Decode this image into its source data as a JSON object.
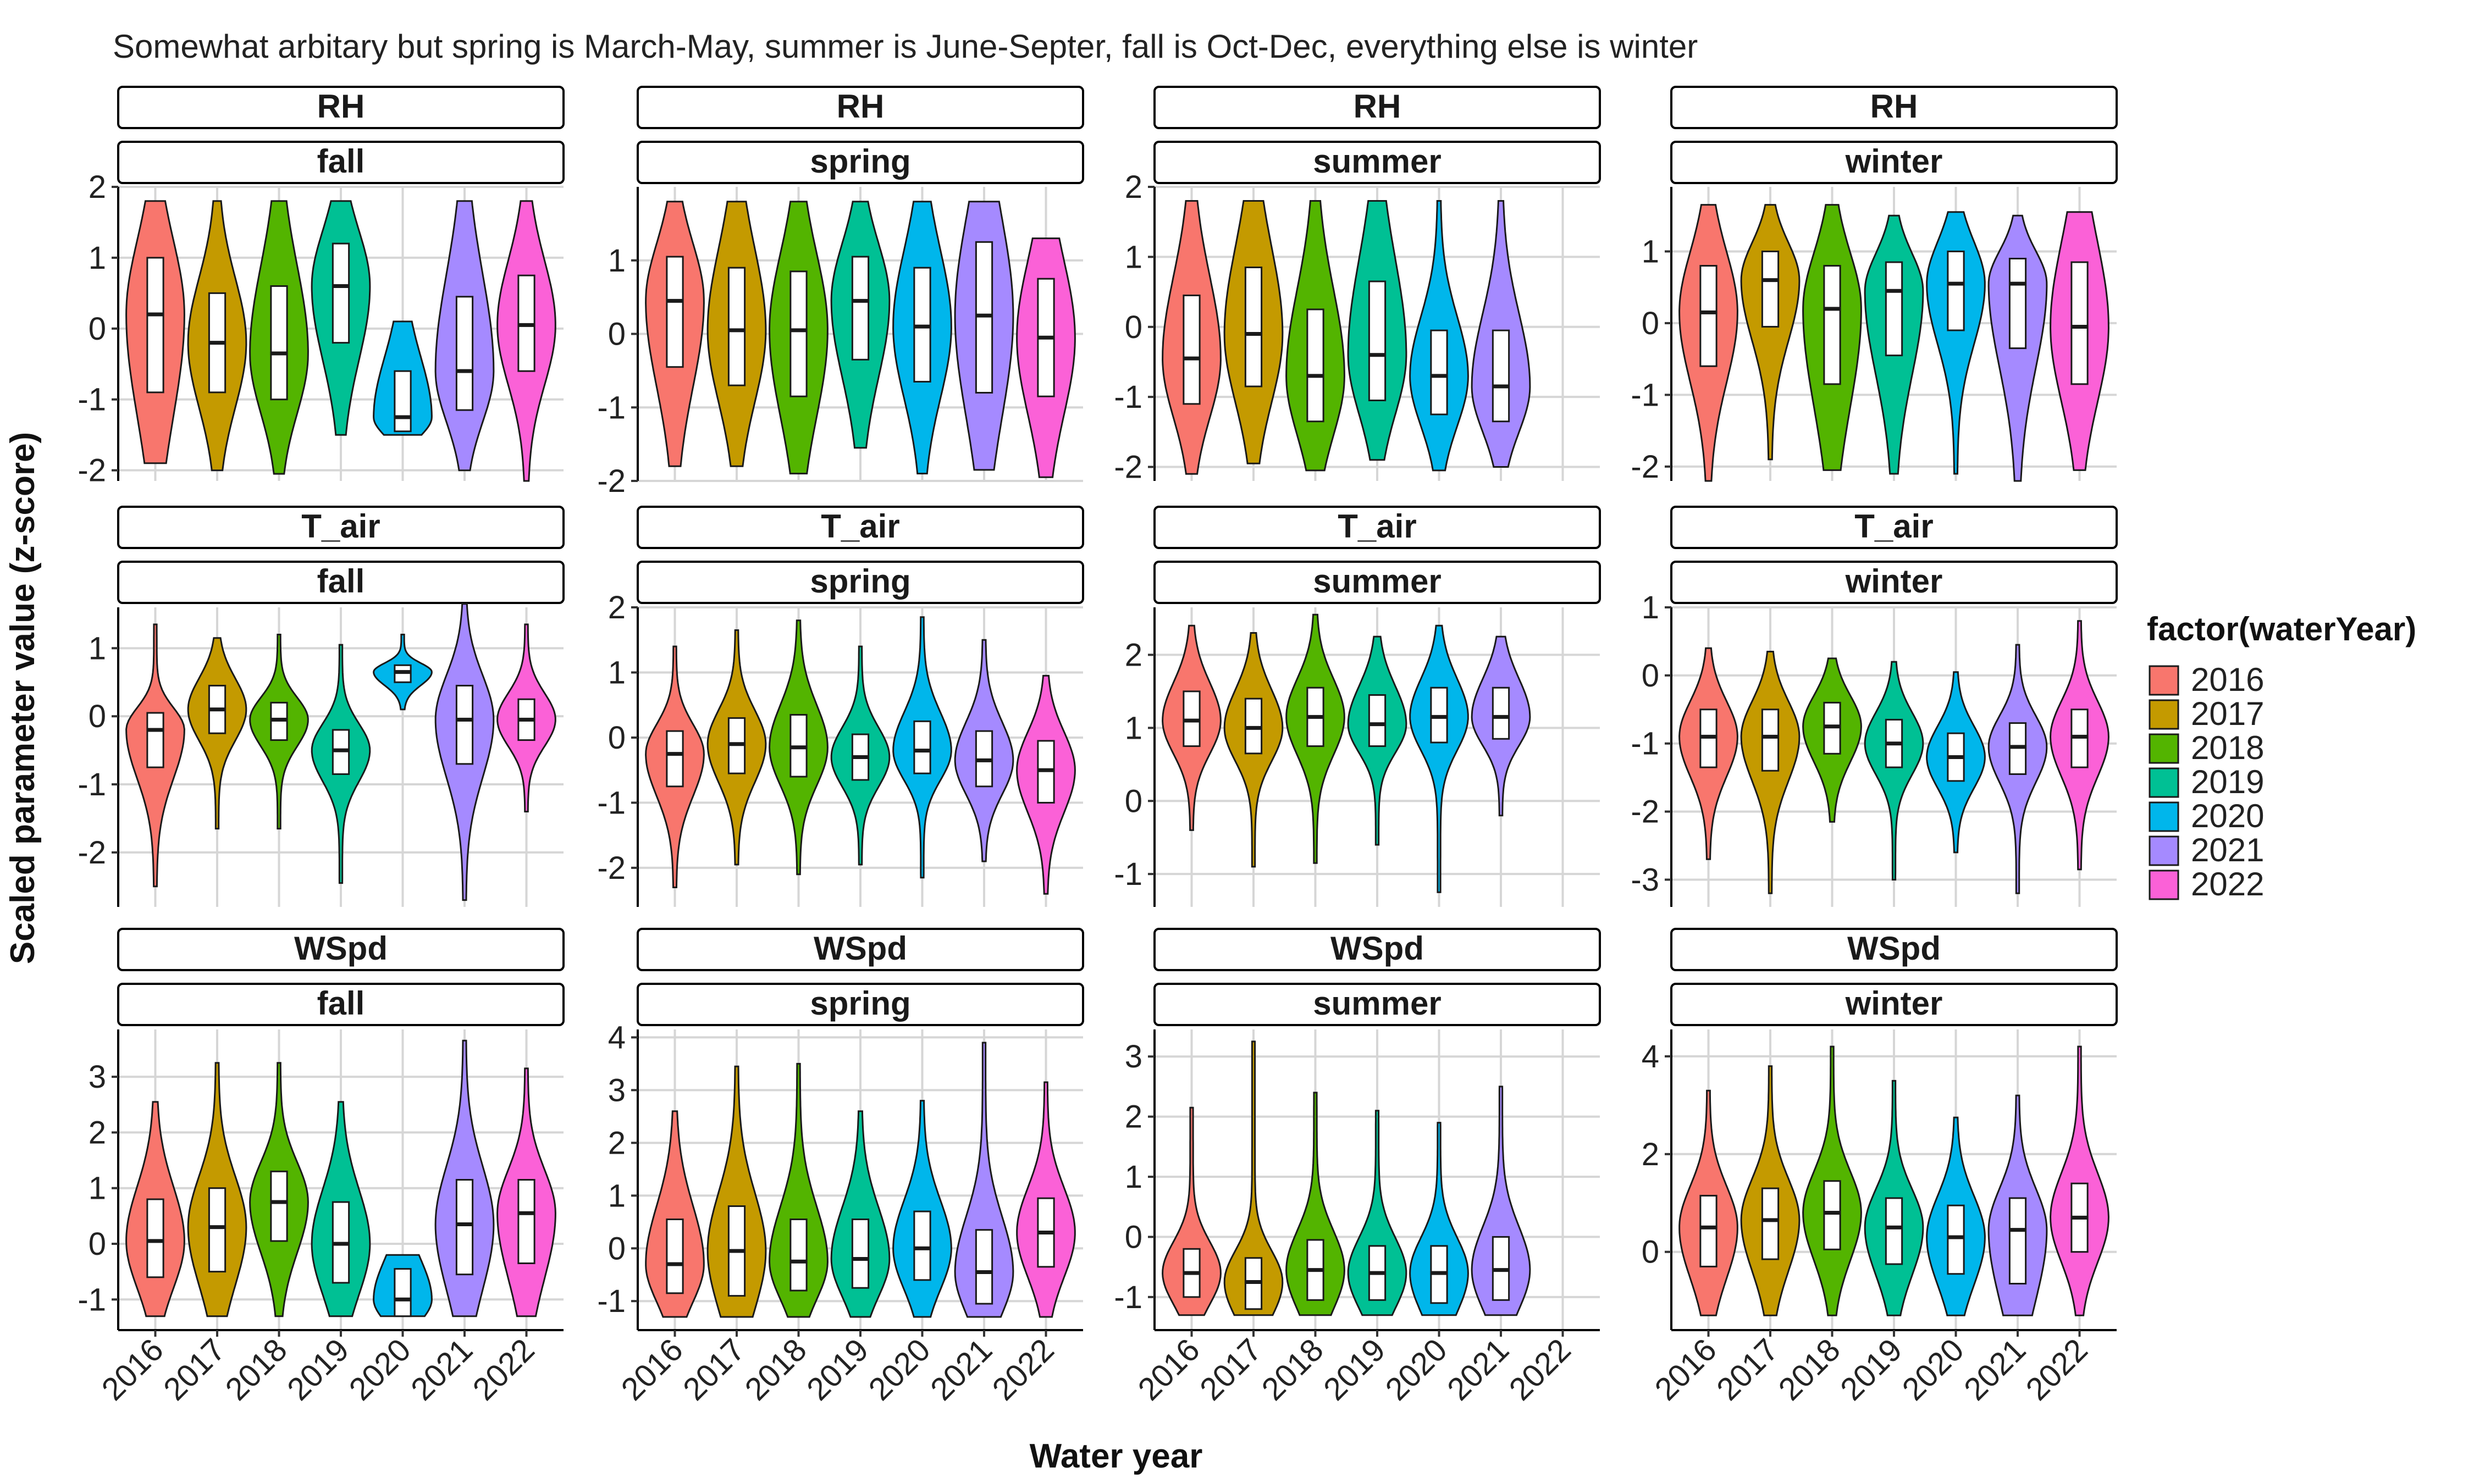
{
  "title": "Somewhat arbitary but spring is March-May, summer is June-Septer, fall is Oct-Dec, everything else is winter",
  "xlabel": "Water year",
  "ylabel": "Scaled parameter value (z-score)",
  "legend": {
    "title": "factor(waterYear)",
    "position": "right",
    "entries": [
      {
        "label": "2016",
        "color": "#F8766D"
      },
      {
        "label": "2017",
        "color": "#C49A00"
      },
      {
        "label": "2018",
        "color": "#53B400"
      },
      {
        "label": "2019",
        "color": "#00C094"
      },
      {
        "label": "2020",
        "color": "#00B6EB"
      },
      {
        "label": "2021",
        "color": "#A58AFF"
      },
      {
        "label": "2022",
        "color": "#FB61D7"
      }
    ]
  },
  "chart_data": {
    "type": "violin",
    "grid": true,
    "categories": [
      "2016",
      "2017",
      "2018",
      "2019",
      "2020",
      "2021",
      "2022"
    ],
    "facet_rows": [
      "RH",
      "T_air",
      "WSpd"
    ],
    "facet_cols": [
      "fall",
      "spring",
      "summer",
      "winter"
    ],
    "panels": [
      {
        "param": "RH",
        "season": "fall",
        "ylim": [
          -2.15,
          2.0
        ],
        "yticks": [
          -2,
          -1,
          0,
          1,
          2
        ],
        "groups": [
          {
            "year": "2016",
            "min": -1.9,
            "max": 1.8,
            "q1": -0.9,
            "median": 0.2,
            "q3": 1.0
          },
          {
            "year": "2017",
            "min": -2.0,
            "max": 1.8,
            "q1": -0.9,
            "median": -0.2,
            "q3": 0.5
          },
          {
            "year": "2018",
            "min": -2.05,
            "max": 1.8,
            "q1": -1.0,
            "median": -0.35,
            "q3": 0.6
          },
          {
            "year": "2019",
            "min": -1.5,
            "max": 1.8,
            "q1": -0.2,
            "median": 0.6,
            "q3": 1.2
          },
          {
            "year": "2020",
            "min": -1.5,
            "max": 0.1,
            "q1": -1.45,
            "median": -1.25,
            "q3": -0.6
          },
          {
            "year": "2021",
            "min": -2.0,
            "max": 1.8,
            "q1": -1.15,
            "median": -0.6,
            "q3": 0.45
          },
          {
            "year": "2022",
            "min": -2.15,
            "max": 1.8,
            "q1": -0.6,
            "median": 0.05,
            "q3": 0.75
          }
        ]
      },
      {
        "param": "RH",
        "season": "spring",
        "ylim": [
          -2.0,
          2.0
        ],
        "yticks": [
          -2,
          -1,
          0,
          1
        ],
        "groups": [
          {
            "year": "2016",
            "min": -1.8,
            "max": 1.8,
            "q1": -0.45,
            "median": 0.45,
            "q3": 1.05
          },
          {
            "year": "2017",
            "min": -1.8,
            "max": 1.8,
            "q1": -0.7,
            "median": 0.05,
            "q3": 0.9
          },
          {
            "year": "2018",
            "min": -1.9,
            "max": 1.8,
            "q1": -0.85,
            "median": 0.05,
            "q3": 0.85
          },
          {
            "year": "2019",
            "min": -1.55,
            "max": 1.8,
            "q1": -0.35,
            "median": 0.45,
            "q3": 1.05
          },
          {
            "year": "2020",
            "min": -1.9,
            "max": 1.8,
            "q1": -0.65,
            "median": 0.1,
            "q3": 0.9
          },
          {
            "year": "2021",
            "min": -1.85,
            "max": 1.8,
            "q1": -0.8,
            "median": 0.25,
            "q3": 1.25
          },
          {
            "year": "2022",
            "min": -1.95,
            "max": 1.3,
            "q1": -0.85,
            "median": -0.05,
            "q3": 0.75
          }
        ]
      },
      {
        "param": "RH",
        "season": "summer",
        "ylim": [
          -2.2,
          2.0
        ],
        "yticks": [
          -2,
          -1,
          0,
          1,
          2
        ],
        "groups": [
          {
            "year": "2016",
            "min": -2.1,
            "max": 1.8,
            "q1": -1.1,
            "median": -0.45,
            "q3": 0.45
          },
          {
            "year": "2017",
            "min": -1.95,
            "max": 1.8,
            "q1": -0.85,
            "median": -0.1,
            "q3": 0.85
          },
          {
            "year": "2018",
            "min": -2.05,
            "max": 1.8,
            "q1": -1.35,
            "median": -0.7,
            "q3": 0.25
          },
          {
            "year": "2019",
            "min": -1.9,
            "max": 1.8,
            "q1": -1.05,
            "median": -0.4,
            "q3": 0.65
          },
          {
            "year": "2020",
            "min": -2.05,
            "max": 1.8,
            "q1": -1.25,
            "median": -0.7,
            "q3": -0.05
          },
          {
            "year": "2021",
            "min": -2.0,
            "max": 1.8,
            "q1": -1.35,
            "median": -0.85,
            "q3": -0.05
          }
        ]
      },
      {
        "param": "RH",
        "season": "winter",
        "ylim": [
          -2.2,
          1.9
        ],
        "yticks": [
          -2,
          -1,
          0,
          1
        ],
        "groups": [
          {
            "year": "2016",
            "min": -2.2,
            "max": 1.65,
            "q1": -0.6,
            "median": 0.15,
            "q3": 0.8
          },
          {
            "year": "2017",
            "min": -1.9,
            "max": 1.65,
            "q1": -0.05,
            "median": 0.6,
            "q3": 1.0
          },
          {
            "year": "2018",
            "min": -2.05,
            "max": 1.65,
            "q1": -0.85,
            "median": 0.2,
            "q3": 0.8
          },
          {
            "year": "2019",
            "min": -2.1,
            "max": 1.5,
            "q1": -0.45,
            "median": 0.45,
            "q3": 0.85
          },
          {
            "year": "2020",
            "min": -2.1,
            "max": 1.55,
            "q1": -0.1,
            "median": 0.55,
            "q3": 1.0
          },
          {
            "year": "2021",
            "min": -2.2,
            "max": 1.5,
            "q1": -0.35,
            "median": 0.55,
            "q3": 0.9
          },
          {
            "year": "2022",
            "min": -2.05,
            "max": 1.55,
            "q1": -0.85,
            "median": -0.05,
            "q3": 0.85
          }
        ]
      },
      {
        "param": "T_air",
        "season": "fall",
        "ylim": [
          -2.8,
          1.6
        ],
        "yticks": [
          -2,
          -1,
          0,
          1
        ],
        "groups": [
          {
            "year": "2016",
            "min": -2.5,
            "max": 1.35,
            "q1": -0.75,
            "median": -0.2,
            "q3": 0.05
          },
          {
            "year": "2017",
            "min": -1.65,
            "max": 1.15,
            "q1": -0.25,
            "median": 0.1,
            "q3": 0.45
          },
          {
            "year": "2018",
            "min": -1.65,
            "max": 1.2,
            "q1": -0.35,
            "median": -0.05,
            "q3": 0.2
          },
          {
            "year": "2019",
            "min": -2.45,
            "max": 1.05,
            "q1": -0.85,
            "median": -0.5,
            "q3": -0.2
          },
          {
            "year": "2020",
            "min": 0.1,
            "max": 1.2,
            "q1": 0.5,
            "median": 0.65,
            "q3": 0.75
          },
          {
            "year": "2021",
            "min": -2.7,
            "max": 1.65,
            "q1": -0.7,
            "median": -0.05,
            "q3": 0.45
          },
          {
            "year": "2022",
            "min": -1.4,
            "max": 1.35,
            "q1": -0.35,
            "median": -0.05,
            "q3": 0.25
          }
        ]
      },
      {
        "param": "T_air",
        "season": "spring",
        "ylim": [
          -2.6,
          2.0
        ],
        "yticks": [
          -2,
          -1,
          0,
          1,
          2
        ],
        "groups": [
          {
            "year": "2016",
            "min": -2.3,
            "max": 1.4,
            "q1": -0.75,
            "median": -0.25,
            "q3": 0.1
          },
          {
            "year": "2017",
            "min": -1.95,
            "max": 1.65,
            "q1": -0.55,
            "median": -0.1,
            "q3": 0.3
          },
          {
            "year": "2018",
            "min": -2.1,
            "max": 1.8,
            "q1": -0.6,
            "median": -0.15,
            "q3": 0.35
          },
          {
            "year": "2019",
            "min": -1.95,
            "max": 1.4,
            "q1": -0.65,
            "median": -0.3,
            "q3": 0.05
          },
          {
            "year": "2020",
            "min": -2.15,
            "max": 1.85,
            "q1": -0.55,
            "median": -0.2,
            "q3": 0.25
          },
          {
            "year": "2021",
            "min": -1.9,
            "max": 1.5,
            "q1": -0.75,
            "median": -0.35,
            "q3": 0.1
          },
          {
            "year": "2022",
            "min": -2.4,
            "max": 0.95,
            "q1": -1.0,
            "median": -0.5,
            "q3": -0.05
          }
        ]
      },
      {
        "param": "T_air",
        "season": "summer",
        "ylim": [
          -1.45,
          2.65
        ],
        "yticks": [
          -1,
          0,
          1,
          2
        ],
        "groups": [
          {
            "year": "2016",
            "min": -0.4,
            "max": 2.4,
            "q1": 0.75,
            "median": 1.1,
            "q3": 1.5
          },
          {
            "year": "2017",
            "min": -0.9,
            "max": 2.3,
            "q1": 0.65,
            "median": 1.0,
            "q3": 1.4
          },
          {
            "year": "2018",
            "min": -0.85,
            "max": 2.55,
            "q1": 0.75,
            "median": 1.15,
            "q3": 1.55
          },
          {
            "year": "2019",
            "min": -0.6,
            "max": 2.25,
            "q1": 0.75,
            "median": 1.05,
            "q3": 1.45
          },
          {
            "year": "2020",
            "min": -1.25,
            "max": 2.4,
            "q1": 0.8,
            "median": 1.15,
            "q3": 1.55
          },
          {
            "year": "2021",
            "min": -0.2,
            "max": 2.25,
            "q1": 0.85,
            "median": 1.15,
            "q3": 1.55
          }
        ]
      },
      {
        "param": "T_air",
        "season": "winter",
        "ylim": [
          -3.4,
          1.0
        ],
        "yticks": [
          -3,
          -2,
          -1,
          0,
          1
        ],
        "groups": [
          {
            "year": "2016",
            "min": -2.7,
            "max": 0.4,
            "q1": -1.35,
            "median": -0.9,
            "q3": -0.5
          },
          {
            "year": "2017",
            "min": -3.2,
            "max": 0.35,
            "q1": -1.4,
            "median": -0.9,
            "q3": -0.5
          },
          {
            "year": "2018",
            "min": -2.15,
            "max": 0.25,
            "q1": -1.15,
            "median": -0.75,
            "q3": -0.4
          },
          {
            "year": "2019",
            "min": -3.0,
            "max": 0.2,
            "q1": -1.35,
            "median": -1.0,
            "q3": -0.65
          },
          {
            "year": "2020",
            "min": -2.6,
            "max": 0.05,
            "q1": -1.55,
            "median": -1.2,
            "q3": -0.85
          },
          {
            "year": "2021",
            "min": -3.2,
            "max": 0.45,
            "q1": -1.45,
            "median": -1.05,
            "q3": -0.7
          },
          {
            "year": "2022",
            "min": -2.85,
            "max": 0.8,
            "q1": -1.35,
            "median": -0.9,
            "q3": -0.5
          }
        ]
      },
      {
        "param": "WSpd",
        "season": "fall",
        "ylim": [
          -1.55,
          3.85
        ],
        "yticks": [
          -1,
          0,
          1,
          2,
          3
        ],
        "groups": [
          {
            "year": "2016",
            "min": -1.3,
            "max": 2.55,
            "q1": -0.6,
            "median": 0.05,
            "q3": 0.8
          },
          {
            "year": "2017",
            "min": -1.3,
            "max": 3.25,
            "q1": -0.5,
            "median": 0.3,
            "q3": 1.0
          },
          {
            "year": "2018",
            "min": -1.3,
            "max": 3.25,
            "q1": 0.05,
            "median": 0.75,
            "q3": 1.3
          },
          {
            "year": "2019",
            "min": -1.3,
            "max": 2.55,
            "q1": -0.7,
            "median": 0.0,
            "q3": 0.75
          },
          {
            "year": "2020",
            "min": -1.3,
            "max": -0.2,
            "q1": -1.3,
            "median": -1.0,
            "q3": -0.45
          },
          {
            "year": "2021",
            "min": -1.3,
            "max": 3.65,
            "q1": -0.55,
            "median": 0.35,
            "q3": 1.15
          },
          {
            "year": "2022",
            "min": -1.3,
            "max": 3.15,
            "q1": -0.35,
            "median": 0.55,
            "q3": 1.15
          }
        ]
      },
      {
        "param": "WSpd",
        "season": "spring",
        "ylim": [
          -1.55,
          4.15
        ],
        "yticks": [
          -1,
          0,
          1,
          2,
          3,
          4
        ],
        "groups": [
          {
            "year": "2016",
            "min": -1.3,
            "max": 2.6,
            "q1": -0.85,
            "median": -0.3,
            "q3": 0.55
          },
          {
            "year": "2017",
            "min": -1.3,
            "max": 3.45,
            "q1": -0.9,
            "median": -0.05,
            "q3": 0.8
          },
          {
            "year": "2018",
            "min": -1.3,
            "max": 3.5,
            "q1": -0.8,
            "median": -0.25,
            "q3": 0.55
          },
          {
            "year": "2019",
            "min": -1.3,
            "max": 2.6,
            "q1": -0.75,
            "median": -0.2,
            "q3": 0.55
          },
          {
            "year": "2020",
            "min": -1.3,
            "max": 2.8,
            "q1": -0.6,
            "median": 0.0,
            "q3": 0.7
          },
          {
            "year": "2021",
            "min": -1.3,
            "max": 3.9,
            "q1": -1.05,
            "median": -0.45,
            "q3": 0.35
          },
          {
            "year": "2022",
            "min": -1.3,
            "max": 3.15,
            "q1": -0.35,
            "median": 0.3,
            "q3": 0.95
          }
        ]
      },
      {
        "param": "WSpd",
        "season": "summer",
        "ylim": [
          -1.55,
          3.45
        ],
        "yticks": [
          -1,
          0,
          1,
          2,
          3
        ],
        "groups": [
          {
            "year": "2016",
            "min": -1.3,
            "max": 2.15,
            "q1": -1.0,
            "median": -0.6,
            "q3": -0.2
          },
          {
            "year": "2017",
            "min": -1.3,
            "max": 3.25,
            "q1": -1.2,
            "median": -0.75,
            "q3": -0.35
          },
          {
            "year": "2018",
            "min": -1.3,
            "max": 2.4,
            "q1": -1.05,
            "median": -0.55,
            "q3": -0.05
          },
          {
            "year": "2019",
            "min": -1.3,
            "max": 2.1,
            "q1": -1.05,
            "median": -0.6,
            "q3": -0.15
          },
          {
            "year": "2020",
            "min": -1.3,
            "max": 1.9,
            "q1": -1.1,
            "median": -0.6,
            "q3": -0.15
          },
          {
            "year": "2021",
            "min": -1.3,
            "max": 2.5,
            "q1": -1.05,
            "median": -0.55,
            "q3": 0.0
          }
        ]
      },
      {
        "param": "WSpd",
        "season": "winter",
        "ylim": [
          -1.6,
          4.55
        ],
        "yticks": [
          0,
          2,
          4
        ],
        "groups": [
          {
            "year": "2016",
            "min": -1.3,
            "max": 3.3,
            "q1": -0.3,
            "median": 0.5,
            "q3": 1.15
          },
          {
            "year": "2017",
            "min": -1.3,
            "max": 3.8,
            "q1": -0.15,
            "median": 0.65,
            "q3": 1.3
          },
          {
            "year": "2018",
            "min": -1.3,
            "max": 4.2,
            "q1": 0.05,
            "median": 0.8,
            "q3": 1.45
          },
          {
            "year": "2019",
            "min": -1.3,
            "max": 3.5,
            "q1": -0.25,
            "median": 0.5,
            "q3": 1.1
          },
          {
            "year": "2020",
            "min": -1.3,
            "max": 2.75,
            "q1": -0.45,
            "median": 0.3,
            "q3": 0.95
          },
          {
            "year": "2021",
            "min": -1.3,
            "max": 3.2,
            "q1": -0.65,
            "median": 0.45,
            "q3": 1.1
          },
          {
            "year": "2022",
            "min": -1.3,
            "max": 4.2,
            "q1": 0.0,
            "median": 0.7,
            "q3": 1.4
          }
        ]
      }
    ]
  }
}
